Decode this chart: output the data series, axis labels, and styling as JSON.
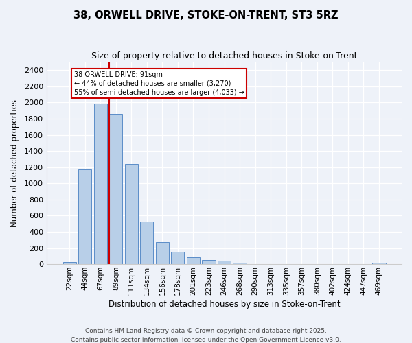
{
  "title1": "38, ORWELL DRIVE, STOKE-ON-TRENT, ST3 5RZ",
  "title2": "Size of property relative to detached houses in Stoke-on-Trent",
  "xlabel": "Distribution of detached houses by size in Stoke-on-Trent",
  "ylabel": "Number of detached properties",
  "bar_labels": [
    "22sqm",
    "44sqm",
    "67sqm",
    "89sqm",
    "111sqm",
    "134sqm",
    "156sqm",
    "178sqm",
    "201sqm",
    "223sqm",
    "246sqm",
    "268sqm",
    "290sqm",
    "313sqm",
    "335sqm",
    "357sqm",
    "380sqm",
    "402sqm",
    "424sqm",
    "447sqm",
    "469sqm"
  ],
  "bar_values": [
    25,
    1170,
    1990,
    1860,
    1240,
    525,
    275,
    155,
    90,
    50,
    45,
    15,
    5,
    2,
    1,
    1,
    1,
    1,
    0,
    0,
    15
  ],
  "bar_color": "#b8cfe8",
  "bar_edge_color": "#5b8dc8",
  "redline_color": "#cc0000",
  "annotation_text": "38 ORWELL DRIVE: 91sqm\n← 44% of detached houses are smaller (3,270)\n55% of semi-detached houses are larger (4,033) →",
  "annotation_box_color": "#ffffff",
  "annotation_box_edge": "#cc0000",
  "ylim": [
    0,
    2500
  ],
  "yticks": [
    0,
    200,
    400,
    600,
    800,
    1000,
    1200,
    1400,
    1600,
    1800,
    2000,
    2200,
    2400
  ],
  "footer1": "Contains HM Land Registry data © Crown copyright and database right 2025.",
  "footer2": "Contains public sector information licensed under the Open Government Licence v3.0.",
  "bg_color": "#eef2f9"
}
